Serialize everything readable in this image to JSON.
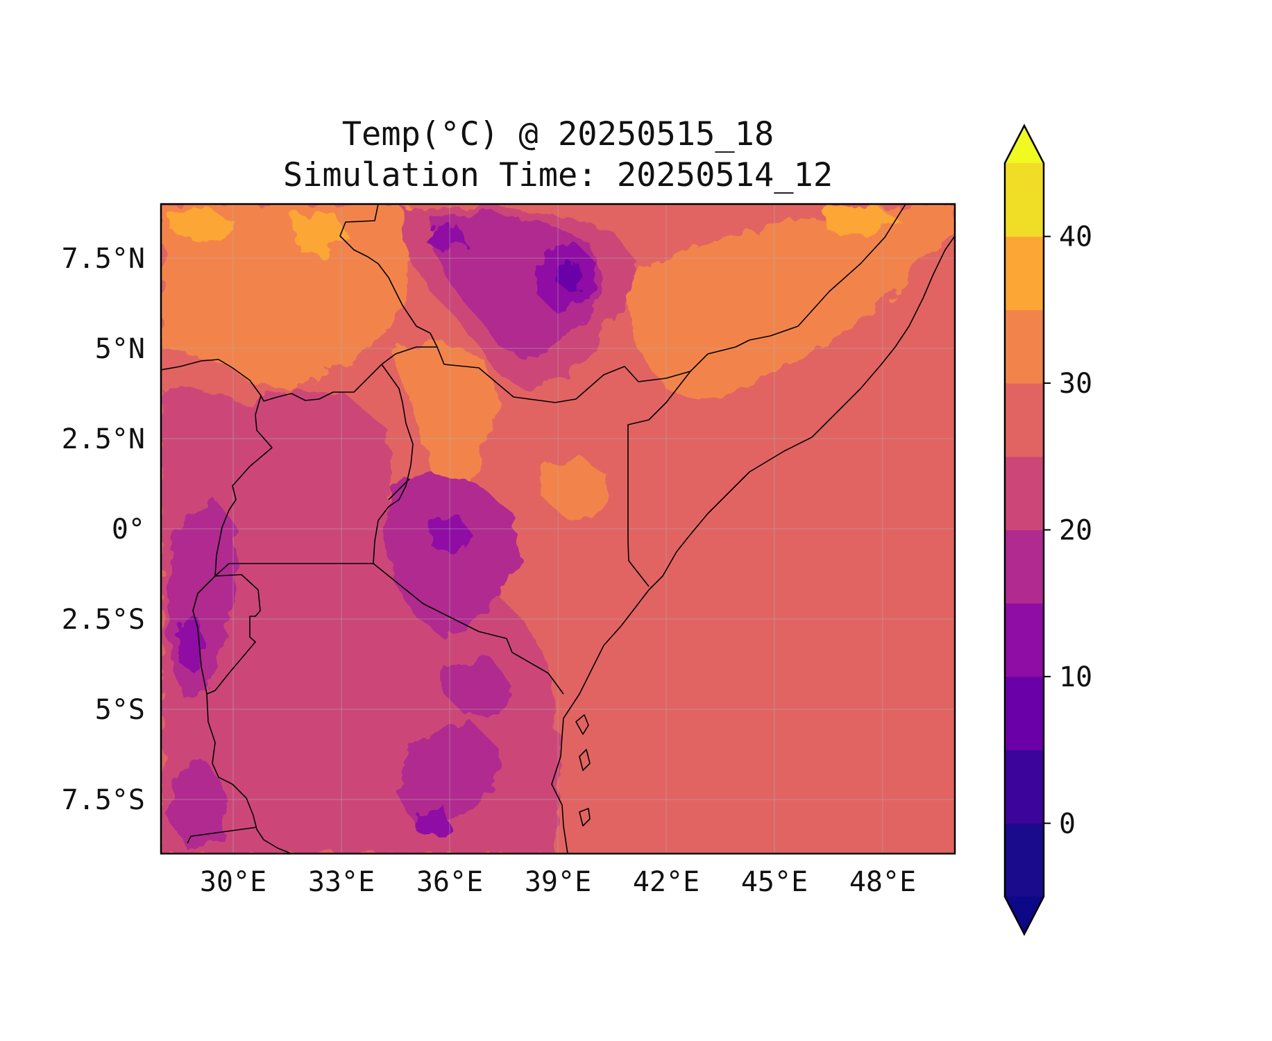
{
  "title_line1": "Temp(°C) @ 20250515_18",
  "title_line2": "Simulation Time: 20250514_12",
  "chart_data": {
    "type": "heatmap",
    "map_extent": {
      "lon": [
        28.0,
        50.0
      ],
      "lat": [
        -9.0,
        9.0
      ]
    },
    "x_ticks": [
      {
        "value": 30,
        "label": "30°E"
      },
      {
        "value": 33,
        "label": "33°E"
      },
      {
        "value": 36,
        "label": "36°E"
      },
      {
        "value": 39,
        "label": "39°E"
      },
      {
        "value": 42,
        "label": "42°E"
      },
      {
        "value": 45,
        "label": "45°E"
      },
      {
        "value": 48,
        "label": "48°E"
      }
    ],
    "y_ticks": [
      {
        "value": 7.5,
        "label": "7.5°N"
      },
      {
        "value": 5,
        "label": "5°N"
      },
      {
        "value": 2.5,
        "label": "2.5°N"
      },
      {
        "value": 0,
        "label": "0°"
      },
      {
        "value": -2.5,
        "label": "2.5°S"
      },
      {
        "value": -5,
        "label": "5°S"
      },
      {
        "value": -7.5,
        "label": "7.5°S"
      }
    ],
    "grid": true,
    "colorbar": {
      "orientation": "vertical",
      "extend": "both",
      "levels": [
        -5,
        0,
        5,
        10,
        15,
        20,
        25,
        30,
        35,
        40,
        45
      ],
      "colors": [
        "#1a0a8c",
        "#3d049b",
        "#6a00a8",
        "#8f0da4",
        "#b12a90",
        "#cc4778",
        "#e16462",
        "#f2844b",
        "#fca636",
        "#f0dd26"
      ],
      "under_color": "#0d0887",
      "over_color": "#f0f921",
      "tick_labels": [
        {
          "value": 0,
          "label": "0"
        },
        {
          "value": 10,
          "label": "10"
        },
        {
          "value": 20,
          "label": "20"
        },
        {
          "value": 30,
          "label": "30"
        },
        {
          "value": 40,
          "label": "40"
        }
      ]
    }
  }
}
